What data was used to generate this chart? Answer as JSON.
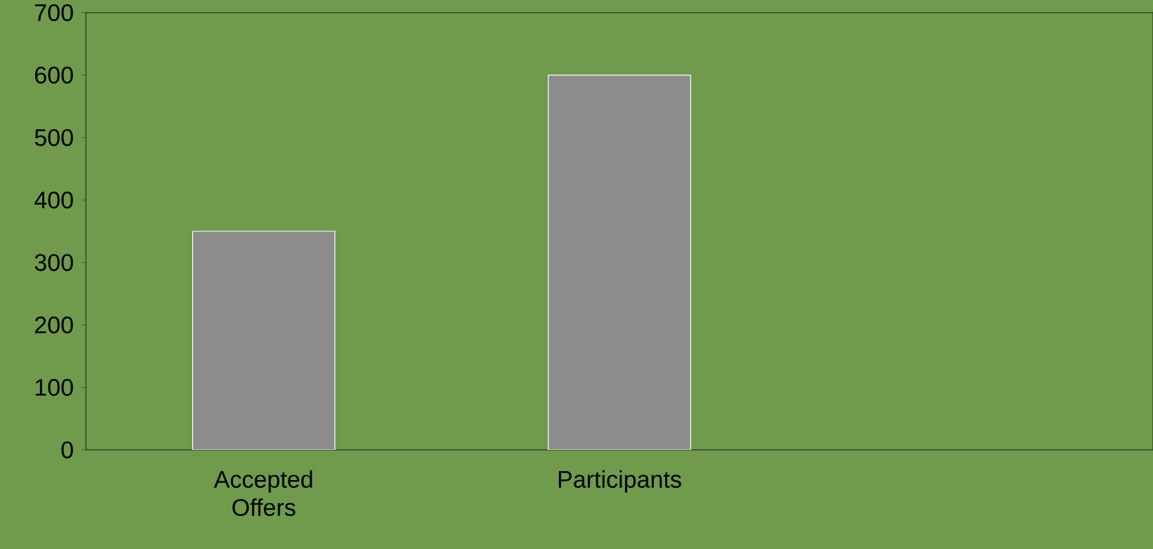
{
  "chart_data": {
    "type": "bar",
    "categories": [
      "Accepted Offers",
      "Participants",
      null
    ],
    "values": [
      350,
      600,
      null
    ],
    "color": "#8c8c8c",
    "ylim": [
      0,
      700
    ],
    "yticks": [
      0,
      100,
      200,
      300,
      400,
      500,
      600,
      700
    ],
    "grid": false
  }
}
